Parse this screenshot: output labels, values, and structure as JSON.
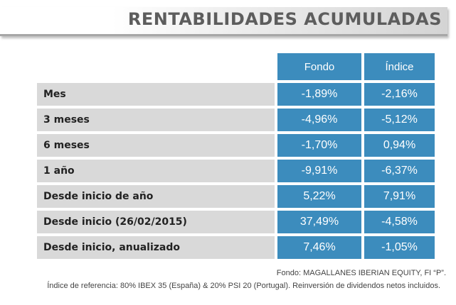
{
  "title": "RENTABILIDADES ACUMULADAS",
  "table": {
    "headers": [
      "Fondo",
      "Índice"
    ],
    "rows": [
      {
        "label": "Mes",
        "fondo": "-1,89%",
        "indice": "-2,16%"
      },
      {
        "label": "3 meses",
        "fondo": "-4,96%",
        "indice": "-5,12%"
      },
      {
        "label": "6 meses",
        "fondo": "-1,70%",
        "indice": "0,94%"
      },
      {
        "label": "1 año",
        "fondo": "-9,91%",
        "indice": "-6,37%"
      },
      {
        "label": "Desde inicio de año",
        "fondo": "5,22%",
        "indice": "7,91%"
      },
      {
        "label": "Desde inicio (26/02/2015)",
        "fondo": "37,49%",
        "indice": "-4,58%"
      },
      {
        "label": "Desde inicio, anualizado",
        "fondo": "7,46%",
        "indice": "-1,05%"
      }
    ]
  },
  "notes": {
    "fund": "Fondo: MAGALLANES IBERIAN EQUITY, FI “P”.",
    "benchmark": "Índice de referencia: 80% IBEX 35 (España) & 20% PSI 20 (Portugal). Reinversión de dividendos netos incluidos."
  },
  "colors": {
    "accent": "#3c8cbd",
    "label_bg": "#d9d9d9",
    "title_text": "#5d5d5d"
  }
}
